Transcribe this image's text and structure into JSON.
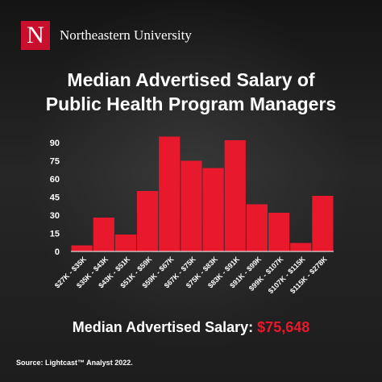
{
  "brand": {
    "logo_letter": "N",
    "name": "Northeastern University"
  },
  "title_line1": "Median Advertised Salary of",
  "title_line2": "Public Health Program Managers",
  "median": {
    "label": "Median Advertised Salary:",
    "value": "$75,648"
  },
  "source": "Source:  Lightcast™ Analyst 2022.",
  "colors": {
    "bar": "#e8192c",
    "accent": "#c8102e",
    "text": "#ffffff"
  },
  "chart_data": {
    "type": "bar",
    "categories": [
      "$27K - $35K",
      "$35K - $43K",
      "$43K - $51K",
      "$51K - $59K",
      "$59K - $67K",
      "$67K - $75K",
      "$75K - $83K",
      "$83K - $91K",
      "$91K - $99K",
      "$99K - $107K",
      "$107K - $115K",
      "$115K - $278K"
    ],
    "values": [
      5,
      28,
      14,
      50,
      95,
      75,
      69,
      92,
      39,
      32,
      7,
      46
    ],
    "yticks": [
      0,
      15,
      30,
      45,
      60,
      75,
      90
    ],
    "ylim": [
      0,
      100
    ],
    "title": "Median Advertised Salary of Public Health Program Managers",
    "xlabel": "",
    "ylabel": "",
    "grid": false,
    "legend": "none"
  }
}
